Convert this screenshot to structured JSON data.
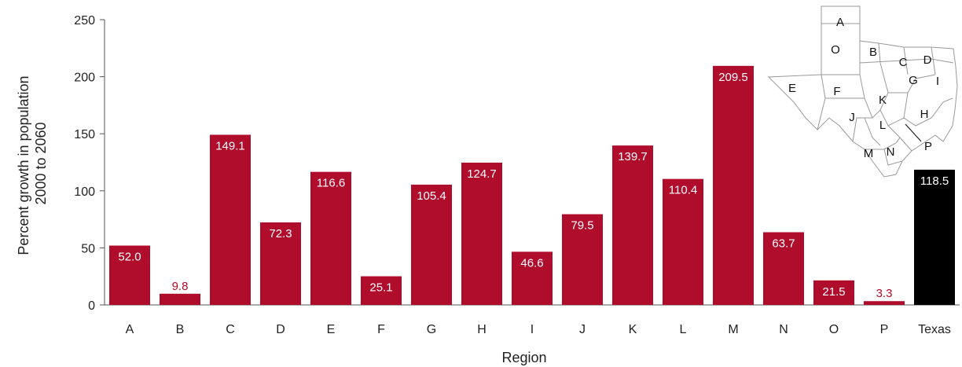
{
  "chart_data": {
    "type": "bar",
    "title": "",
    "xlabel": "Region",
    "ylabel_lines": [
      "Percent growth in  population",
      "2000 to 2060"
    ],
    "ylim": [
      0,
      250
    ],
    "yticks": [
      0,
      50,
      100,
      150,
      200,
      250
    ],
    "grid": false,
    "categories": [
      "A",
      "B",
      "C",
      "D",
      "E",
      "F",
      "G",
      "H",
      "I",
      "J",
      "K",
      "L",
      "M",
      "N",
      "O",
      "P",
      "Texas"
    ],
    "values": [
      52.0,
      9.8,
      149.1,
      72.3,
      116.6,
      25.1,
      105.4,
      124.7,
      46.6,
      79.5,
      139.7,
      110.4,
      209.5,
      63.7,
      21.5,
      3.3,
      118.5
    ],
    "data_labels": [
      "52.0",
      "9.8",
      "149.1",
      "72.3",
      "116.6",
      "25.1",
      "105.4",
      "124.7",
      "46.6",
      "79.5",
      "139.7",
      "110.4",
      "209.5",
      "63.7",
      "21.5",
      "3.3",
      "118.5"
    ],
    "colors": {
      "region_bar": "#b00c2c",
      "total_bar": "#000000",
      "label_inside": "#ffffff",
      "label_outside": "#b00c2c"
    }
  },
  "inset_map": {
    "region_letters": [
      "A",
      "O",
      "B",
      "C",
      "D",
      "E",
      "F",
      "G",
      "I",
      "K",
      "H",
      "J",
      "L",
      "P",
      "M",
      "N"
    ]
  }
}
